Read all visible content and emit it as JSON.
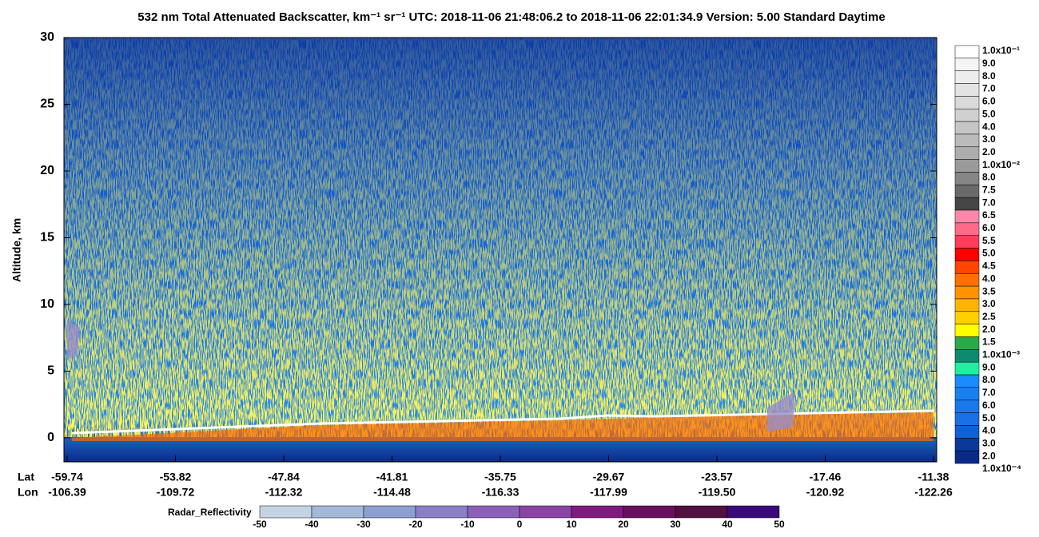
{
  "chart_data": {
    "type": "curtain",
    "title": "532 nm Total Attenuated Backscatter, km⁻¹ sr⁻¹    UTC:  2018-11-06 21:48:06.2  to  2018-11-06 22:01:34.9    Version: 5.00  Standard  Daytime",
    "y_label": "Altitude, km",
    "ylim": [
      -1.8,
      30
    ],
    "yticks": [
      0,
      5,
      10,
      15,
      20,
      25,
      30
    ],
    "x_row_labels": [
      "Lat",
      "Lon"
    ],
    "lat": [
      "-59.74",
      "-53.82",
      "-47.84",
      "-41.81",
      "-35.75",
      "-29.67",
      "-23.57",
      "-17.46",
      "-11.38"
    ],
    "lon": [
      "-106.39",
      "-109.72",
      "-112.32",
      "-114.48",
      "-116.33",
      "-117.99",
      "-119.50",
      "-120.92",
      "-122.26"
    ],
    "colorbar": {
      "labels": [
        "1.0x10⁻¹",
        "9.0",
        "8.0",
        "7.0",
        "6.0",
        "5.0",
        "4.0",
        "3.0",
        "2.0",
        "1.0x10⁻²",
        "8.0",
        "7.5",
        "7.0",
        "6.5",
        "6.0",
        "5.5",
        "5.0",
        "4.5",
        "4.0",
        "3.5",
        "3.0",
        "2.5",
        "2.0",
        "1.5",
        "1.0x10⁻³",
        "9.0",
        "8.0",
        "7.0",
        "6.0",
        "5.0",
        "4.0",
        "3.0",
        "2.0",
        "1.0x10⁻⁴"
      ],
      "colors": [
        "#ffffff",
        "#f5f5f5",
        "#ededed",
        "#e3e3e3",
        "#dadada",
        "#d0d0d0",
        "#c6c6c6",
        "#bbbbbb",
        "#adadad",
        "#9a9a9a",
        "#858585",
        "#6a6a6a",
        "#454545",
        "#ff88aa",
        "#ff6a8a",
        "#ff3c5a",
        "#ff0000",
        "#ff4500",
        "#ff7000",
        "#ff9400",
        "#ffb400",
        "#ffd000",
        "#ffff00",
        "#2aa84a",
        "#0e8a6e",
        "#1ef0a0",
        "#1a8cff",
        "#1a80f0",
        "#1a78ee",
        "#1a70e6",
        "#1060d8",
        "#0a3a99",
        "#0a2a8a"
      ]
    },
    "radar": {
      "label": "Radar_Reflectivity",
      "ticks": [
        -50,
        -40,
        -30,
        -20,
        -10,
        0,
        10,
        20,
        30,
        40,
        50
      ],
      "colors": [
        "#c4d3e4",
        "#a4b8d8",
        "#8d9fcf",
        "#8a7fc7",
        "#8c60b8",
        "#8a44a5",
        "#801a80",
        "#6a1060",
        "#501040",
        "#3a0a7a"
      ]
    }
  }
}
